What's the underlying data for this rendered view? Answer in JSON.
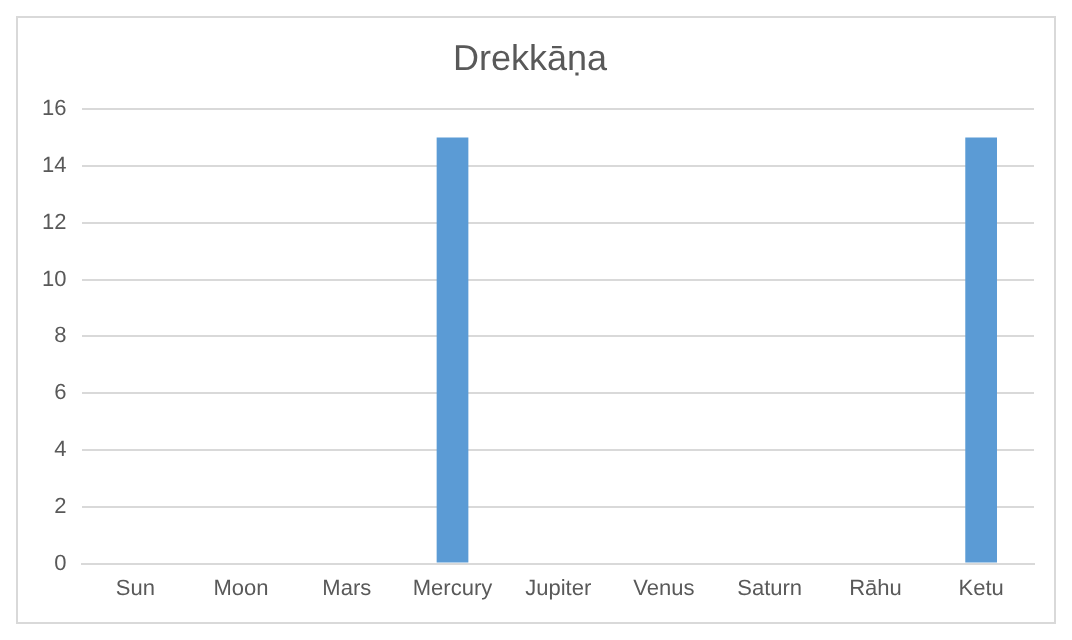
{
  "chart_data": {
    "type": "bar",
    "title": "Drekkāṇa",
    "categories": [
      "Sun",
      "Moon",
      "Mars",
      "Mercury",
      "Jupiter",
      "Venus",
      "Saturn",
      "Rāhu",
      "Ketu"
    ],
    "values": [
      0,
      0,
      0,
      15,
      0,
      0,
      0,
      0,
      15
    ],
    "color": "#5b9bd5",
    "ylim": [
      0,
      16
    ],
    "yticks": [
      0,
      2,
      4,
      6,
      8,
      10,
      12,
      14,
      16
    ],
    "grid": "y",
    "legend": false
  }
}
